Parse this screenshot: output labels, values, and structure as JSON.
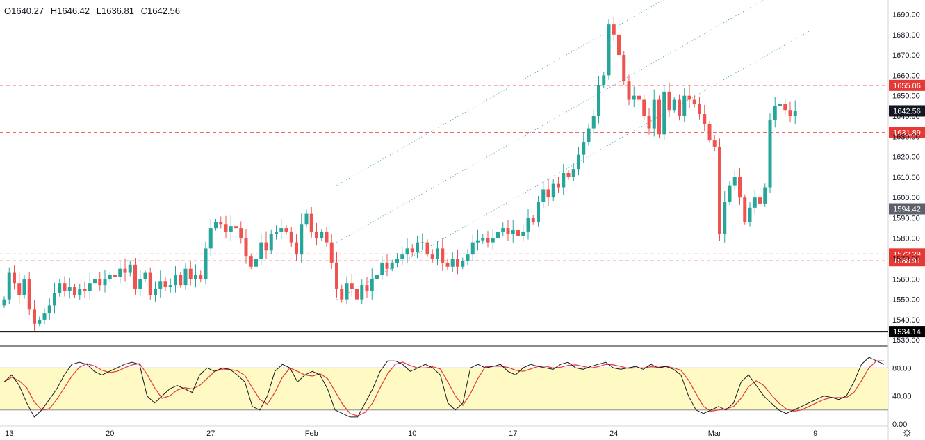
{
  "ohlc": {
    "open": "O1640.27",
    "high": "H1646.42",
    "low": "L1636.81",
    "close": "C1642.56"
  },
  "colors": {
    "up": "#26a69a",
    "down": "#ef5350",
    "stoch_k": "#131722",
    "stoch_d": "#e53935",
    "band": "#fff9c4"
  },
  "chart_data": [
    {
      "type": "candlestick",
      "title": "",
      "ylim": [
        1527,
        1697
      ],
      "y_ticks": [
        "1530.00",
        "1540.00",
        "1550.00",
        "1560.00",
        "1570.00",
        "1580.00",
        "1590.00",
        "1600.00",
        "1610.00",
        "1620.00",
        "1630.00",
        "1640.00",
        "1650.00",
        "1660.00",
        "1670.00",
        "1680.00",
        "1690.00"
      ],
      "x_ticks": [
        {
          "label": "13",
          "index": 1
        },
        {
          "label": "20",
          "index": 21
        },
        {
          "label": "27",
          "index": 41
        },
        {
          "label": "Feb",
          "index": 61
        },
        {
          "label": "10",
          "index": 81
        },
        {
          "label": "17",
          "index": 101
        },
        {
          "label": "24",
          "index": 121
        },
        {
          "label": "Mar",
          "index": 141
        },
        {
          "label": "9",
          "index": 161
        }
      ],
      "closes": [
        1550,
        1563,
        1558,
        1552,
        1560,
        1545,
        1538,
        1540,
        1543,
        1547,
        1553,
        1558,
        1554,
        1556,
        1552,
        1555,
        1554,
        1558,
        1560,
        1557,
        1560,
        1562,
        1561,
        1565,
        1563,
        1567,
        1555,
        1560,
        1563,
        1552,
        1555,
        1559,
        1556,
        1557,
        1562,
        1557,
        1565,
        1560,
        1562,
        1560,
        1575,
        1585,
        1588,
        1587,
        1583,
        1586,
        1585,
        1580,
        1571,
        1566,
        1570,
        1578,
        1574,
        1582,
        1583,
        1585,
        1583,
        1578,
        1572,
        1587,
        1592,
        1583,
        1580,
        1583,
        1578,
        1568,
        1555,
        1550,
        1558,
        1555,
        1550,
        1557,
        1554,
        1560,
        1562,
        1568,
        1565,
        1568,
        1570,
        1572,
        1575,
        1573,
        1578,
        1578,
        1572,
        1570,
        1575,
        1568,
        1566,
        1570,
        1566,
        1569,
        1572,
        1578,
        1579,
        1580,
        1578,
        1580,
        1583,
        1585,
        1582,
        1584,
        1581,
        1583,
        1590,
        1588,
        1598,
        1604,
        1600,
        1607,
        1605,
        1612,
        1610,
        1614,
        1621,
        1627,
        1634,
        1640,
        1655,
        1660,
        1685,
        1680,
        1670,
        1657,
        1648,
        1650,
        1648,
        1640,
        1634,
        1648,
        1631,
        1652,
        1643,
        1648,
        1640,
        1650,
        1648,
        1646,
        1641,
        1636,
        1628,
        1625,
        1582,
        1598,
        1606,
        1610,
        1600,
        1588,
        1595,
        1600,
        1597,
        1605,
        1638,
        1645,
        1646,
        1643,
        1640,
        1642.56
      ],
      "x_label": "",
      "y_label": "",
      "price_lines": [
        {
          "label": "1655.06",
          "value": 1655.06,
          "style": "dashed-red"
        },
        {
          "label": "1642.56",
          "value": 1642.56,
          "style": "current"
        },
        {
          "label": "1631.89",
          "value": 1631.89,
          "style": "dashed-red"
        },
        {
          "label": "1594.42",
          "value": 1594.42,
          "style": "solid-grey"
        },
        {
          "label": "1572.29",
          "value": 1572.29,
          "style": "dashed-red"
        },
        {
          "label": "1568.91",
          "value": 1568.91,
          "style": "dashed-red"
        },
        {
          "label": "1534.14",
          "value": 1534.14,
          "style": "solid-black"
        }
      ],
      "channel": {
        "start_index": 66,
        "end_index": 160,
        "lines": [
          [
            1550,
            1682
          ],
          [
            1578,
            1710
          ],
          [
            1606,
            1738
          ]
        ]
      }
    },
    {
      "type": "line",
      "title": "",
      "ylim": [
        -3,
        110
      ],
      "y_ticks": [
        "0.00",
        "40.00",
        "80.00"
      ],
      "band": [
        20,
        80
      ],
      "k": [
        60,
        70,
        55,
        30,
        10,
        20,
        35,
        50,
        70,
        85,
        88,
        85,
        75,
        70,
        75,
        80,
        85,
        88,
        85,
        40,
        30,
        40,
        50,
        55,
        50,
        45,
        70,
        80,
        75,
        80,
        78,
        70,
        60,
        25,
        20,
        40,
        75,
        85,
        80,
        60,
        70,
        75,
        70,
        50,
        20,
        15,
        10,
        10,
        30,
        50,
        75,
        90,
        90,
        85,
        75,
        80,
        85,
        80,
        70,
        30,
        20,
        30,
        80,
        85,
        80,
        82,
        85,
        75,
        70,
        80,
        85,
        82,
        80,
        78,
        85,
        88,
        80,
        78,
        82,
        85,
        88,
        80,
        78,
        80,
        82,
        78,
        85,
        80,
        82,
        78,
        70,
        40,
        20,
        15,
        20,
        25,
        20,
        30,
        60,
        70,
        55,
        40,
        30,
        20,
        15,
        20,
        25,
        30,
        35,
        40,
        38,
        35,
        40,
        60,
        85,
        95,
        90,
        85
      ]
    }
  ]
}
